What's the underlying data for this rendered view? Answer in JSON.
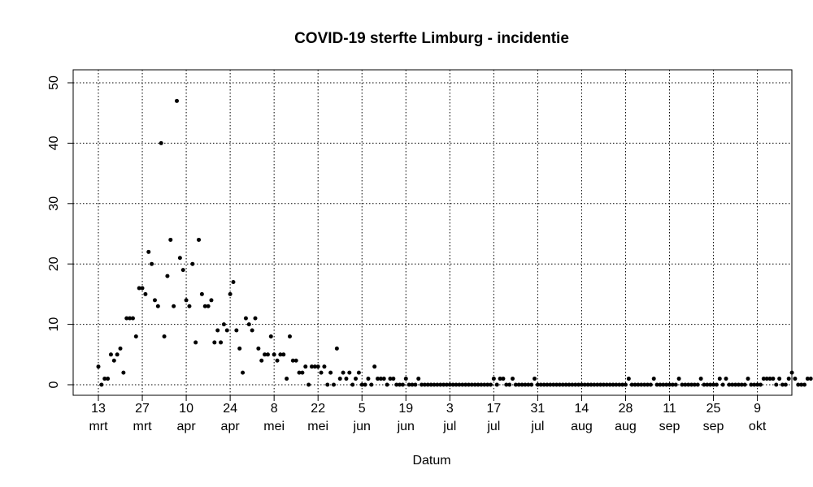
{
  "chart_data": {
    "type": "scatter",
    "title": "COVID-19 sterfte Limburg - incidentie",
    "xlabel": "Datum",
    "ylabel": "",
    "ylim": [
      0,
      50
    ],
    "yticks": [
      0,
      10,
      20,
      30,
      40,
      50
    ],
    "x_start_date": "2020-03-13",
    "xticks": [
      {
        "day": "13",
        "month": "mrt"
      },
      {
        "day": "27",
        "month": "mrt"
      },
      {
        "day": "10",
        "month": "apr"
      },
      {
        "day": "24",
        "month": "apr"
      },
      {
        "day": "8",
        "month": "mei"
      },
      {
        "day": "22",
        "month": "mei"
      },
      {
        "day": "5",
        "month": "jun"
      },
      {
        "day": "19",
        "month": "jun"
      },
      {
        "day": "3",
        "month": "jul"
      },
      {
        "day": "17",
        "month": "jul"
      },
      {
        "day": "31",
        "month": "jul"
      },
      {
        "day": "14",
        "month": "aug"
      },
      {
        "day": "28",
        "month": "aug"
      },
      {
        "day": "11",
        "month": "sep"
      },
      {
        "day": "25",
        "month": "sep"
      },
      {
        "day": "9",
        "month": "okt"
      }
    ],
    "grid": true,
    "marker_color": "#000000",
    "values": [
      3,
      0,
      1,
      1,
      5,
      4,
      5,
      6,
      2,
      11,
      11,
      11,
      8,
      16,
      16,
      15,
      22,
      20,
      14,
      13,
      40,
      8,
      18,
      24,
      13,
      47,
      21,
      19,
      14,
      13,
      20,
      7,
      24,
      15,
      13,
      13,
      14,
      7,
      9,
      7,
      10,
      9,
      15,
      17,
      9,
      6,
      2,
      11,
      10,
      9,
      11,
      6,
      4,
      5,
      5,
      8,
      5,
      4,
      5,
      5,
      1,
      8,
      4,
      4,
      2,
      2,
      3,
      0,
      3,
      3,
      3,
      2,
      3,
      0,
      2,
      0,
      6,
      1,
      2,
      1,
      2,
      0,
      1,
      2,
      0,
      0,
      1,
      0,
      3,
      1,
      1,
      1,
      0,
      1,
      1,
      0,
      0,
      0,
      1,
      0,
      0,
      0,
      1,
      0,
      0,
      0,
      0,
      0,
      0,
      0,
      0,
      0,
      0,
      0,
      0,
      0,
      0,
      0,
      0,
      0,
      0,
      0,
      0,
      0,
      0,
      0,
      1,
      0,
      1,
      1,
      0,
      0,
      1,
      0,
      0,
      0,
      0,
      0,
      0,
      1,
      0,
      0,
      0,
      0,
      0,
      0,
      0,
      0,
      0,
      0,
      0,
      0,
      0,
      0,
      0,
      0,
      0,
      0,
      0,
      0,
      0,
      0,
      0,
      0,
      0,
      0,
      0,
      0,
      0,
      1,
      0,
      0,
      0,
      0,
      0,
      0,
      0,
      1,
      0,
      0,
      0,
      0,
      0,
      0,
      0,
      1,
      0,
      0,
      0,
      0,
      0,
      0,
      1,
      0,
      0,
      0,
      0,
      0,
      1,
      0,
      1,
      0,
      0,
      0,
      0,
      0,
      0,
      1,
      0,
      0,
      0,
      0,
      1,
      1,
      1,
      1,
      0,
      1,
      0,
      0,
      1,
      2,
      1,
      0,
      0,
      0,
      1,
      1
    ]
  }
}
